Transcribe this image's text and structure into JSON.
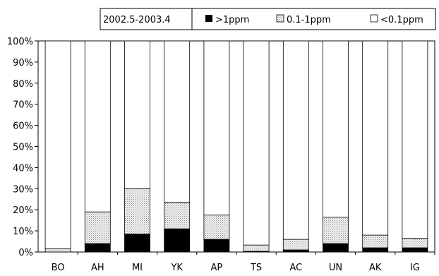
{
  "chart_data": {
    "type": "bar",
    "stacked": true,
    "categories": [
      "BO",
      "AH",
      "MI",
      "YK",
      "AP",
      "TS",
      "AC",
      "UN",
      "AK",
      "IG"
    ],
    "series": [
      {
        "name": ">1ppm",
        "values": [
          0,
          4,
          8.5,
          11,
          6,
          0.3,
          1,
          4,
          2,
          2
        ],
        "color": "#000000",
        "pattern": "solid"
      },
      {
        "name": "0.1-1ppm",
        "values": [
          1.5,
          15,
          21.5,
          12.5,
          11.5,
          3,
          5,
          12.5,
          6,
          4.5
        ],
        "color": "#d0d0d0",
        "pattern": "dotted"
      },
      {
        "name": "<0.1ppm",
        "values": [
          98.5,
          81,
          70,
          76.5,
          82.5,
          96.7,
          94,
          83.5,
          92,
          93.5
        ],
        "color": "#ffffff",
        "pattern": "none"
      }
    ],
    "ylim": [
      0,
      100
    ],
    "yticks": [
      "0%",
      "10%",
      "20%",
      "30%",
      "40%",
      "50%",
      "60%",
      "70%",
      "80%",
      "90%",
      "100%"
    ],
    "grid": false,
    "legend": {
      "placement": "top-right",
      "period": "2002.5-2003.4",
      "labels": [
        ">1ppm",
        "0.1-1ppm",
        "<0.1ppm"
      ]
    }
  }
}
